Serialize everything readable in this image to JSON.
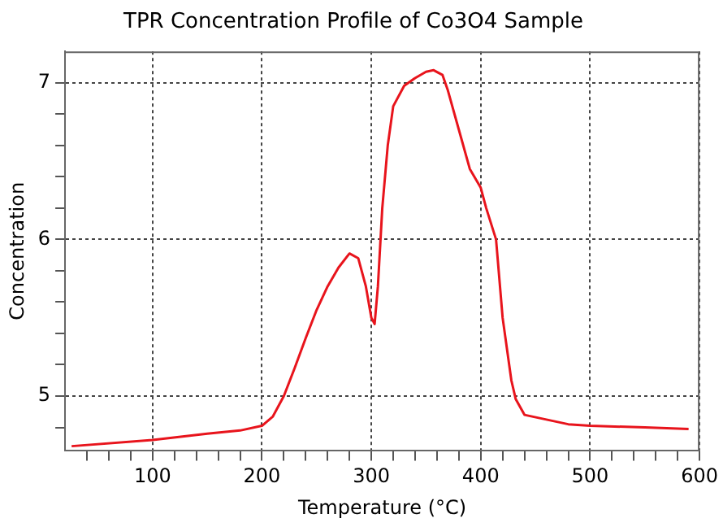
{
  "chart_data": {
    "type": "line",
    "title": "TPR Concentration Profile of Co3O4 Sample",
    "xlabel": "Temperature (°C)",
    "ylabel": "Concentration",
    "xlim": [
      20,
      600
    ],
    "xticks": [
      {
        "value": 40,
        "label": null
      },
      {
        "value": 60,
        "label": null
      },
      {
        "value": 80,
        "label": null
      },
      100,
      {
        "value": 120,
        "label": null
      },
      {
        "value": 140,
        "label": null
      },
      {
        "value": 160,
        "label": null
      },
      {
        "value": 180,
        "label": null
      },
      200,
      {
        "value": 220,
        "label": null
      },
      {
        "value": 240,
        "label": null
      },
      {
        "value": 260,
        "label": null
      },
      {
        "value": 280,
        "label": null
      },
      300,
      {
        "value": 320,
        "label": null
      },
      {
        "value": 340,
        "label": null
      },
      {
        "value": 360,
        "label": null
      },
      {
        "value": 380,
        "label": null
      },
      400,
      {
        "value": 420,
        "label": null
      },
      {
        "value": 440,
        "label": null
      },
      {
        "value": 460,
        "label": null
      },
      {
        "value": 480,
        "label": null
      },
      500,
      {
        "value": 520,
        "label": null
      },
      {
        "value": 540,
        "label": null
      },
      {
        "value": 560,
        "label": null
      },
      {
        "value": 580,
        "label": null
      },
      600
    ],
    "ylim": [
      4.65,
      7.2
    ],
    "yticks": [
      {
        "value": 4.8,
        "label": null
      },
      5,
      {
        "value": 5.2,
        "label": null
      },
      {
        "value": 5.4,
        "label": null
      },
      {
        "value": 5.6,
        "label": null
      },
      {
        "value": 5.8,
        "label": null
      },
      6,
      {
        "value": 6.2,
        "label": null
      },
      {
        "value": 6.4,
        "label": null
      },
      {
        "value": 6.6,
        "label": null
      },
      {
        "value": 6.8,
        "label": null
      },
      7
    ],
    "grid": true,
    "legend": false,
    "marker": "none",
    "line_style": "solid",
    "series": [
      {
        "color": "#e8141c",
        "x": [
          26,
          100,
          150,
          180,
          200,
          210,
          220,
          230,
          240,
          250,
          260,
          270,
          280,
          288,
          295,
          300,
          303,
          306,
          310,
          315,
          320,
          330,
          340,
          350,
          357,
          365,
          370,
          380,
          390,
          400,
          405,
          414,
          420,
          428,
          432,
          440,
          460,
          480,
          500,
          550,
          590
        ],
        "values": [
          4.68,
          4.72,
          4.76,
          4.78,
          4.81,
          4.87,
          5.0,
          5.18,
          5.37,
          5.55,
          5.7,
          5.82,
          5.91,
          5.88,
          5.7,
          5.5,
          5.46,
          5.7,
          6.2,
          6.6,
          6.85,
          6.98,
          7.03,
          7.07,
          7.08,
          7.05,
          6.95,
          6.7,
          6.45,
          6.33,
          6.2,
          6.0,
          5.5,
          5.1,
          4.98,
          4.88,
          4.85,
          4.82,
          4.81,
          4.8,
          4.79
        ]
      }
    ]
  }
}
